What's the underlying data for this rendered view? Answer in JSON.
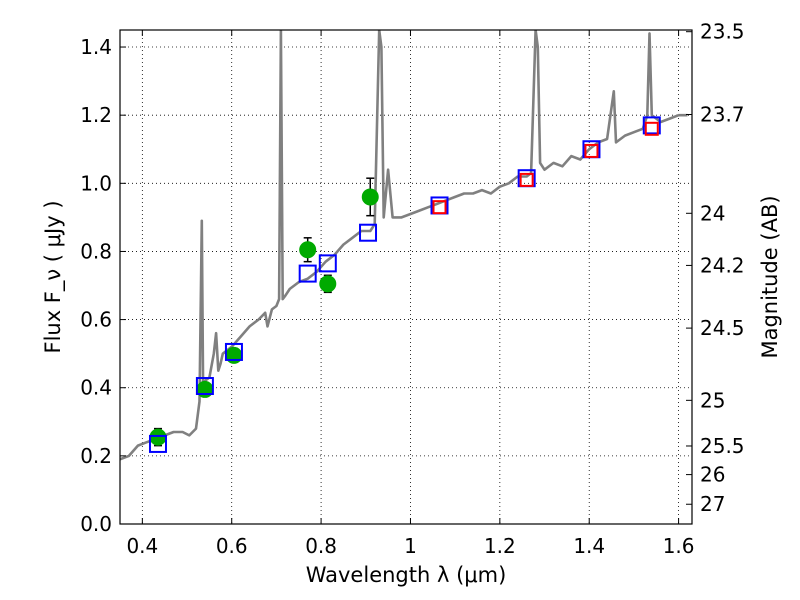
{
  "chart_data": {
    "type": "scatter",
    "xlabel": "Wavelength  λ (μm)",
    "ylabel": "Flux  F_ν  ( μJy )",
    "ylabel_right": "Magnitude (AB)",
    "xlim": [
      0.35,
      1.63
    ],
    "ylim": [
      0.0,
      1.45
    ],
    "grid": true,
    "x_ticks": [
      0.4,
      0.6,
      0.8,
      1.0,
      1.2,
      1.4,
      1.6
    ],
    "x_tick_labels": [
      "0.4",
      "0.6",
      "0.8",
      "1",
      "1.2",
      "1.4",
      "1.6"
    ],
    "y_ticks": [
      0.0,
      0.2,
      0.4,
      0.6,
      0.8,
      1.0,
      1.2,
      1.4
    ],
    "y_tick_labels": [
      "0.0",
      "0.2",
      "0.4",
      "0.6",
      "0.8",
      "1.0",
      "1.2",
      "1.4"
    ],
    "right_ticks": [
      {
        "label": "23.5",
        "flux": 1.445
      },
      {
        "label": "23.7",
        "flux": 1.202
      },
      {
        "label": "24",
        "flux": 0.912
      },
      {
        "label": "24.2",
        "flux": 0.759
      },
      {
        "label": "24.5",
        "flux": 0.575
      },
      {
        "label": "25",
        "flux": 0.363
      },
      {
        "label": "25.5",
        "flux": 0.229
      },
      {
        "label": "26",
        "flux": 0.145
      },
      {
        "label": "27",
        "flux": 0.058
      }
    ],
    "series": [
      {
        "style": "line",
        "color": "#808080",
        "x": [
          0.35,
          0.37,
          0.39,
          0.41,
          0.43,
          0.45,
          0.47,
          0.49,
          0.505,
          0.52,
          0.528,
          0.533,
          0.536,
          0.54,
          0.55,
          0.56,
          0.565,
          0.57,
          0.575,
          0.58,
          0.6,
          0.62,
          0.64,
          0.66,
          0.675,
          0.68,
          0.69,
          0.7,
          0.706,
          0.71,
          0.714,
          0.72,
          0.73,
          0.75,
          0.77,
          0.79,
          0.81,
          0.83,
          0.85,
          0.87,
          0.89,
          0.91,
          0.92,
          0.93,
          0.935,
          0.94,
          0.95,
          0.96,
          0.97,
          0.98,
          1.0,
          1.02,
          1.04,
          1.06,
          1.08,
          1.1,
          1.12,
          1.14,
          1.16,
          1.18,
          1.2,
          1.22,
          1.24,
          1.26,
          1.27,
          1.28,
          1.285,
          1.29,
          1.3,
          1.32,
          1.34,
          1.36,
          1.38,
          1.4,
          1.42,
          1.44,
          1.455,
          1.46,
          1.47,
          1.48,
          1.5,
          1.52,
          1.53,
          1.535,
          1.54,
          1.56,
          1.58,
          1.6,
          1.62
        ],
        "y": [
          0.19,
          0.2,
          0.23,
          0.24,
          0.25,
          0.26,
          0.27,
          0.27,
          0.26,
          0.28,
          0.36,
          0.89,
          0.4,
          0.42,
          0.43,
          0.5,
          0.56,
          0.45,
          0.47,
          0.5,
          0.52,
          0.55,
          0.58,
          0.6,
          0.62,
          0.58,
          0.63,
          0.64,
          0.66,
          1.45,
          0.66,
          0.67,
          0.69,
          0.71,
          0.72,
          0.74,
          0.77,
          0.79,
          0.82,
          0.84,
          0.86,
          0.86,
          0.88,
          1.45,
          1.4,
          0.9,
          1.04,
          0.9,
          0.9,
          0.9,
          0.91,
          0.92,
          0.93,
          0.94,
          0.95,
          0.96,
          0.97,
          0.97,
          0.98,
          0.97,
          0.99,
          1.0,
          1.02,
          1.02,
          1.03,
          1.45,
          1.4,
          1.06,
          1.04,
          1.06,
          1.05,
          1.08,
          1.07,
          1.1,
          1.12,
          1.13,
          1.27,
          1.12,
          1.13,
          1.14,
          1.15,
          1.16,
          1.2,
          1.44,
          1.2,
          1.18,
          1.19,
          1.2,
          1.2
        ]
      },
      {
        "style": "markers",
        "marker": "circle",
        "color": "#00aa00",
        "x": [
          0.435,
          0.54,
          0.605,
          0.77,
          0.815,
          0.91
        ],
        "y": [
          0.255,
          0.395,
          0.495,
          0.805,
          0.705,
          0.96
        ],
        "yerr": [
          0.025,
          0.02,
          0.02,
          0.035,
          0.025,
          0.055
        ]
      },
      {
        "style": "markers",
        "marker": "square",
        "color": "#0000ff",
        "x": [
          0.435,
          0.54,
          0.605,
          0.77,
          0.815,
          0.905,
          1.065,
          1.26,
          1.405,
          1.54
        ],
        "y": [
          0.235,
          0.405,
          0.505,
          0.735,
          0.765,
          0.855,
          0.935,
          1.015,
          1.1,
          1.17
        ]
      },
      {
        "style": "markers",
        "marker": "square",
        "color": "#ff0000",
        "x": [
          1.065,
          1.26,
          1.405,
          1.54
        ],
        "y": [
          0.93,
          1.01,
          1.095,
          1.16
        ]
      }
    ]
  }
}
